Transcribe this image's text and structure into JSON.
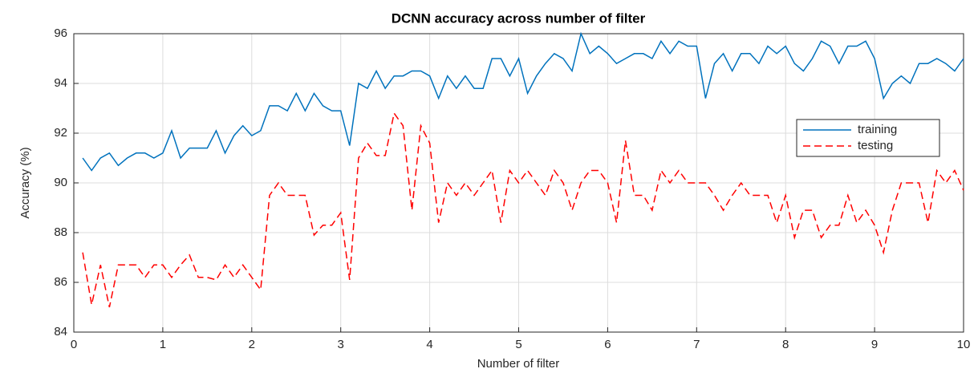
{
  "chart_data": {
    "type": "line",
    "title": "DCNN accuracy across number of filter",
    "xlabel": "Number of filter",
    "ylabel": "Accuracy (%)",
    "x": [
      0.1,
      0.2,
      0.3,
      0.4,
      0.5,
      0.6,
      0.7,
      0.8,
      0.9,
      1.0,
      1.1,
      1.2,
      1.3,
      1.4,
      1.5,
      1.6,
      1.7,
      1.8,
      1.9,
      2.0,
      2.1,
      2.2,
      2.3,
      2.4,
      2.5,
      2.6,
      2.7,
      2.8,
      2.9,
      3.0,
      3.1,
      3.2,
      3.3,
      3.4,
      3.5,
      3.6,
      3.7,
      3.8,
      3.9,
      4.0,
      4.1,
      4.2,
      4.3,
      4.4,
      4.5,
      4.6,
      4.7,
      4.8,
      4.9,
      5.0,
      5.1,
      5.2,
      5.3,
      5.4,
      5.5,
      5.6,
      5.7,
      5.8,
      5.9,
      6.0,
      6.1,
      6.2,
      6.3,
      6.4,
      6.5,
      6.6,
      6.7,
      6.8,
      6.9,
      7.0,
      7.1,
      7.2,
      7.3,
      7.4,
      7.5,
      7.6,
      7.7,
      7.8,
      7.9,
      8.0,
      8.1,
      8.2,
      8.3,
      8.4,
      8.5,
      8.6,
      8.7,
      8.8,
      8.9,
      9.0,
      9.1,
      9.2,
      9.3,
      9.4,
      9.5,
      9.6,
      9.7,
      9.8,
      9.9,
      10.0
    ],
    "series": [
      {
        "name": "training",
        "color": "#0072bd",
        "linestyle": "solid",
        "values": [
          91.0,
          90.5,
          91.0,
          91.2,
          90.7,
          91.0,
          91.2,
          91.2,
          91.0,
          91.2,
          92.1,
          91.0,
          91.4,
          91.4,
          91.4,
          92.1,
          91.2,
          91.9,
          92.3,
          91.9,
          92.1,
          93.1,
          93.1,
          92.9,
          93.6,
          92.9,
          93.6,
          93.1,
          92.9,
          92.9,
          91.5,
          94.0,
          93.8,
          94.5,
          93.8,
          94.3,
          94.3,
          94.5,
          94.5,
          94.3,
          93.4,
          94.3,
          93.8,
          94.3,
          93.8,
          93.8,
          95.0,
          95.0,
          94.3,
          95.0,
          93.6,
          94.3,
          94.8,
          95.2,
          95.0,
          94.5,
          96.0,
          95.2,
          95.5,
          95.2,
          94.8,
          95.0,
          95.2,
          95.2,
          95.0,
          95.7,
          95.2,
          95.7,
          95.5,
          95.5,
          93.4,
          94.8,
          95.2,
          94.5,
          95.2,
          95.2,
          94.8,
          95.5,
          95.2,
          95.5,
          94.8,
          94.5,
          95.0,
          95.7,
          95.5,
          94.8,
          95.5,
          95.5,
          95.7,
          95.0,
          93.4,
          94.0,
          94.3,
          94.0,
          94.8,
          94.8,
          95.0,
          94.8,
          94.5,
          95.0
        ]
      },
      {
        "name": "testing",
        "color": "#ff0000",
        "linestyle": "dashed",
        "values": [
          87.2,
          85.1,
          86.7,
          85.0,
          86.7,
          86.7,
          86.7,
          86.2,
          86.7,
          86.7,
          86.2,
          86.7,
          87.1,
          86.2,
          86.2,
          86.1,
          86.7,
          86.2,
          86.7,
          86.2,
          85.7,
          89.5,
          90.0,
          89.5,
          89.5,
          89.5,
          87.9,
          88.3,
          88.3,
          88.8,
          86.1,
          91.0,
          91.6,
          91.1,
          91.1,
          92.8,
          92.3,
          88.9,
          92.3,
          91.6,
          88.4,
          90.0,
          89.5,
          90.0,
          89.5,
          90.0,
          90.5,
          88.4,
          90.5,
          90.0,
          90.5,
          90.0,
          89.5,
          90.5,
          90.0,
          88.9,
          90.0,
          90.5,
          90.5,
          90.0,
          88.4,
          91.7,
          89.5,
          89.5,
          88.9,
          90.5,
          90.0,
          90.5,
          90.0,
          90.0,
          90.0,
          89.5,
          88.9,
          89.5,
          90.0,
          89.5,
          89.5,
          89.5,
          88.4,
          89.5,
          87.8,
          88.9,
          88.9,
          87.8,
          88.3,
          88.3,
          89.5,
          88.4,
          88.9,
          88.3,
          87.2,
          88.9,
          90.0,
          90.0,
          90.0,
          88.4,
          90.5,
          90.0,
          90.5,
          89.7
        ]
      }
    ],
    "xlim": [
      0,
      10
    ],
    "xticks": [
      0,
      1,
      2,
      3,
      4,
      5,
      6,
      7,
      8,
      9,
      10
    ],
    "ylim": [
      84,
      96
    ],
    "yticks": [
      84,
      86,
      88,
      90,
      92,
      94,
      96
    ],
    "grid": true,
    "legend": "east"
  }
}
